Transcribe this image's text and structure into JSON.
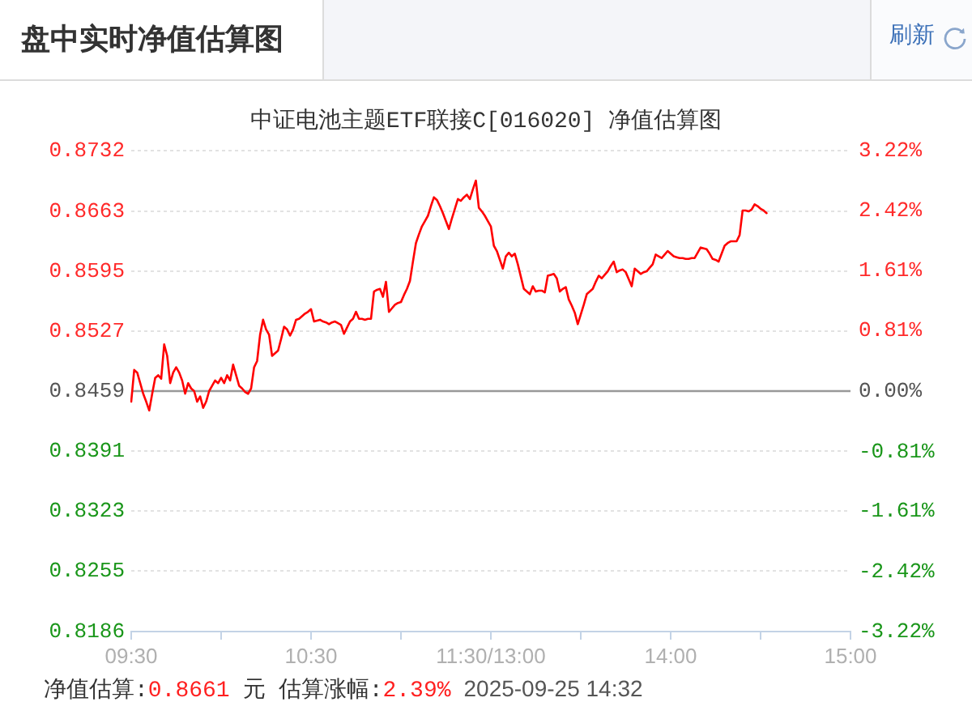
{
  "chart_data": {
    "type": "line",
    "title": "盘中实时净值估算图",
    "subtitle": "中证电池主题ETF联接C[016020] 净值估算图",
    "categories": [
      "09:30",
      null,
      null,
      null,
      null,
      null,
      null,
      null,
      null,
      null,
      null,
      null,
      null,
      null,
      null,
      null,
      null,
      null,
      null,
      null,
      null,
      null,
      null,
      null,
      null,
      null,
      null,
      null,
      null,
      null,
      null,
      null,
      null,
      null,
      null,
      null,
      null,
      null,
      null,
      null,
      null,
      null,
      null,
      null,
      null,
      null,
      null,
      null,
      null,
      null,
      null,
      null,
      null,
      null,
      null,
      null,
      null,
      null,
      null,
      null,
      "10:30",
      null,
      null,
      null,
      null,
      null,
      null,
      null,
      null,
      null,
      null,
      null,
      null,
      null,
      null,
      null,
      null,
      null,
      null,
      null,
      null,
      null,
      null,
      null,
      null,
      null,
      null,
      null,
      null,
      null,
      null,
      null,
      null,
      null,
      null,
      null,
      null,
      null,
      null,
      null,
      null,
      null,
      null,
      null,
      null,
      null,
      null,
      null,
      null,
      null,
      null,
      null,
      null,
      null,
      null,
      null,
      null,
      null,
      null,
      null,
      "11:30/13:00",
      null,
      null,
      null,
      null,
      null,
      null,
      null,
      null,
      null,
      null,
      null,
      null,
      null,
      null,
      null,
      null,
      null,
      null,
      null,
      null,
      null,
      null,
      null,
      null,
      null,
      null,
      null,
      null,
      null,
      null,
      null,
      null,
      null,
      null,
      null,
      null,
      null,
      null,
      null,
      null,
      null,
      null,
      null,
      null,
      null,
      null,
      null,
      null,
      null,
      null,
      null,
      null,
      null,
      null,
      null,
      null,
      null,
      null,
      null,
      "14:00",
      null,
      null,
      null,
      null,
      null,
      null,
      null,
      null,
      null,
      null,
      null,
      null,
      null,
      null,
      null,
      null,
      null,
      null,
      null,
      null,
      null,
      null,
      null,
      null,
      null,
      null,
      null,
      null,
      null,
      null,
      null,
      null,
      null,
      null,
      null,
      null,
      null,
      null,
      null,
      null,
      null,
      null,
      null,
      null,
      null,
      null,
      null,
      null,
      null,
      null,
      null,
      null,
      null,
      null,
      null,
      null,
      null,
      null,
      null,
      "15:00"
    ],
    "series": [
      {
        "color": "#ff0000",
        "values": [
          0.8447,
          0.8483,
          0.848,
          0.8468,
          0.8456,
          0.8447,
          0.8437,
          0.8456,
          0.8474,
          0.8477,
          0.8473,
          0.8512,
          0.8499,
          0.8468,
          0.848,
          0.8486,
          0.848,
          0.8471,
          0.8456,
          0.8468,
          0.8462,
          0.8459,
          0.8447,
          0.8453,
          0.844,
          0.8447,
          0.8459,
          0.8465,
          0.8471,
          0.8468,
          0.8474,
          0.8468,
          0.8477,
          0.8471,
          0.8489,
          0.8477,
          0.8465,
          0.8462,
          0.8458,
          0.8456,
          0.8462,
          0.8486,
          0.8493,
          0.8523,
          0.854,
          0.8529,
          0.8523,
          0.8499,
          0.8502,
          0.8505,
          0.8518,
          0.8532,
          0.8529,
          0.8522,
          0.8529,
          0.854,
          0.8541,
          0.8544,
          0.8547,
          0.8549,
          0.8552,
          0.8538,
          0.8539,
          0.854,
          0.8538,
          0.8537,
          0.8535,
          0.8537,
          0.8538,
          0.8536,
          0.8534,
          0.8524,
          0.8531,
          0.8538,
          0.8541,
          0.8549,
          0.8541,
          0.8541,
          0.854,
          0.8541,
          0.8541,
          0.8572,
          0.8574,
          0.8575,
          0.8566,
          0.8583,
          0.8549,
          0.8553,
          0.8557,
          0.8559,
          0.856,
          0.8568,
          0.8575,
          0.8584,
          0.8606,
          0.8627,
          0.8637,
          0.8646,
          0.8652,
          0.8658,
          0.8669,
          0.8679,
          0.8676,
          0.8669,
          0.8661,
          0.8652,
          0.8643,
          0.8655,
          0.8666,
          0.8677,
          0.8675,
          0.8679,
          0.8682,
          0.8677,
          0.8688,
          0.8698,
          0.8667,
          0.8663,
          0.8658,
          0.8652,
          0.8646,
          0.8624,
          0.8618,
          0.8608,
          0.8598,
          0.8612,
          0.8616,
          0.8612,
          0.8615,
          0.8603,
          0.8589,
          0.8575,
          0.8572,
          0.8569,
          0.8578,
          0.8572,
          0.8573,
          0.8573,
          0.8571,
          0.859,
          0.8591,
          0.8592,
          0.8587,
          0.8572,
          0.8575,
          0.8577,
          0.8563,
          0.8556,
          0.8548,
          0.8535,
          0.8546,
          0.8557,
          0.8569,
          0.8572,
          0.8575,
          0.8583,
          0.859,
          0.8587,
          0.8591,
          0.8595,
          0.8601,
          0.8606,
          0.8594,
          0.8596,
          0.8597,
          0.8594,
          0.8586,
          0.8578,
          0.8598,
          0.8595,
          0.8592,
          0.8594,
          0.8595,
          0.8599,
          0.8603,
          0.8614,
          0.8612,
          0.861,
          0.8614,
          0.8618,
          0.8615,
          0.8612,
          0.8611,
          0.861,
          0.861,
          0.8609,
          0.8609,
          0.861,
          0.861,
          0.8616,
          0.8622,
          0.8621,
          0.862,
          0.8615,
          0.8609,
          0.8608,
          0.8606,
          0.8615,
          0.8624,
          0.8627,
          0.8629,
          0.8629,
          0.8629,
          0.8636,
          0.8664,
          0.8664,
          0.8663,
          0.8665,
          0.8671,
          0.8669,
          0.8666,
          0.8664,
          0.8661,
          null,
          null,
          null,
          null,
          null,
          null,
          null,
          null,
          null,
          null,
          null,
          null,
          null,
          null,
          null,
          null,
          null,
          null,
          null,
          null,
          null,
          null,
          null,
          null,
          null,
          null,
          null,
          null
        ]
      }
    ],
    "ylim": [
      0.8186,
      0.8732
    ],
    "yticks": [
      0.8186,
      0.8255,
      0.8323,
      0.8391,
      0.8459,
      0.8527,
      0.8595,
      0.8663,
      0.8732
    ],
    "y2lim": [
      -3.22,
      3.22
    ],
    "y2ticks": [
      {
        "value": -3.22,
        "label": "-3.22%"
      },
      {
        "value": -2.42,
        "label": "-2.42%"
      },
      {
        "value": -1.61,
        "label": "-1.61%"
      },
      {
        "value": -0.81,
        "label": "-0.81%"
      },
      {
        "value": 0,
        "label": "0.00%"
      },
      {
        "value": 0.81,
        "label": "0.81%"
      },
      {
        "value": 1.61,
        "label": "1.61%"
      },
      {
        "value": 2.42,
        "label": "2.42%"
      },
      {
        "value": 3.22,
        "label": "3.22%"
      }
    ],
    "ref_lines": [
      {
        "axis": "y",
        "value": 0.8459,
        "color": "#999999"
      }
    ],
    "grid": "y",
    "legend": false,
    "annotations": [
      "刷新",
      "净值估算:",
      "0.8661",
      "元",
      "估算涨幅:",
      "2.39%",
      "2025-09-25 14:32"
    ]
  }
}
